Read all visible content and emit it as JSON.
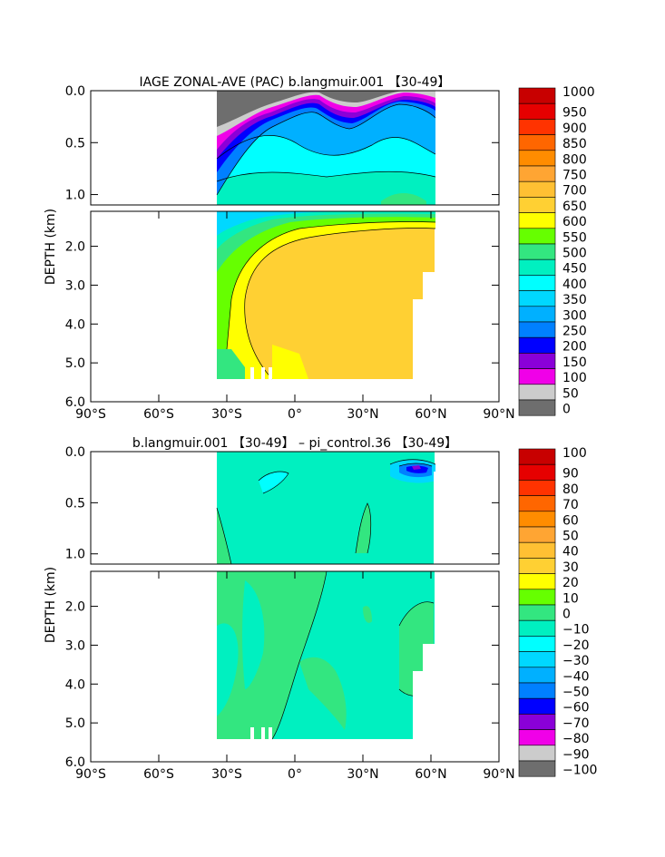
{
  "chart_data": [
    {
      "type": "heatmap",
      "title": "IAGE ZONAL-AVE (PAC) b.langmuir.001 【30-49】",
      "ylabel": "DEPTH (km)",
      "xlabel": "",
      "x_ticks": [
        "90°S",
        "60°S",
        "30°S",
        "0°",
        "30°N",
        "60°N",
        "90°N"
      ],
      "y_ticks_top": [
        "0.0",
        "0.5",
        "1.0"
      ],
      "y_ticks_bottom": [
        "2.0",
        "3.0",
        "4.0",
        "5.0",
        "6.0"
      ],
      "xlim": [
        -90,
        90
      ],
      "ylim_km": [
        0,
        6
      ],
      "data_extent_lat": [
        -34,
        62
      ],
      "colorbar_levels": [
        "1000",
        "950",
        "900",
        "850",
        "800",
        "750",
        "700",
        "650",
        "600",
        "550",
        "500",
        "450",
        "400",
        "350",
        "300",
        "250",
        "200",
        "150",
        "100",
        "50",
        "0"
      ],
      "colorbar_colors": [
        "#c80000",
        "#e60000",
        "#ff3300",
        "#ff6600",
        "#ff8c00",
        "#ffa533",
        "#ffc033",
        "#ffd033",
        "#ffff00",
        "#66ff00",
        "#33e680",
        "#00f0c0",
        "#00ffff",
        "#00d8ff",
        "#00b0ff",
        "#0080ff",
        "#0000ff",
        "#8a00d8",
        "#f000e8",
        "#cccccc",
        "#6e6e6e"
      ],
      "summary": "Ideal age (years) is near 0 at the surface, increasing with depth; values reach 600-650 years throughout the deep Pacific below ~2 km."
    },
    {
      "type": "heatmap",
      "title": "b.langmuir.001 【30-49】 – pi_control.36 【30-49】",
      "ylabel": "DEPTH (km)",
      "xlabel": "",
      "x_ticks": [
        "90°S",
        "60°S",
        "30°S",
        "0°",
        "30°N",
        "60°N",
        "90°N"
      ],
      "y_ticks_top": [
        "0.0",
        "0.5",
        "1.0"
      ],
      "y_ticks_bottom": [
        "2.0",
        "3.0",
        "4.0",
        "5.0",
        "6.0"
      ],
      "xlim": [
        -90,
        90
      ],
      "ylim_km": [
        0,
        6
      ],
      "data_extent_lat": [
        -34,
        62
      ],
      "colorbar_levels": [
        "100",
        "90",
        "80",
        "70",
        "60",
        "50",
        "40",
        "30",
        "20",
        "10",
        "0",
        "−10",
        "−20",
        "−30",
        "−40",
        "−50",
        "−60",
        "−70",
        "−80",
        "−90",
        "−100"
      ],
      "colorbar_colors": [
        "#c80000",
        "#e60000",
        "#ff3300",
        "#ff6600",
        "#ff8c00",
        "#ffa533",
        "#ffc033",
        "#ffd033",
        "#ffff00",
        "#66ff00",
        "#33e680",
        "#00f0c0",
        "#00ffff",
        "#00d8ff",
        "#00b0ff",
        "#0080ff",
        "#0000ff",
        "#8a00d8",
        "#f000e8",
        "#cccccc",
        "#6e6e6e"
      ],
      "summary": "Difference field mostly between -10 and 0 with patches of 0 to 10; a small negative anomaly near 50°N at the surface."
    }
  ]
}
